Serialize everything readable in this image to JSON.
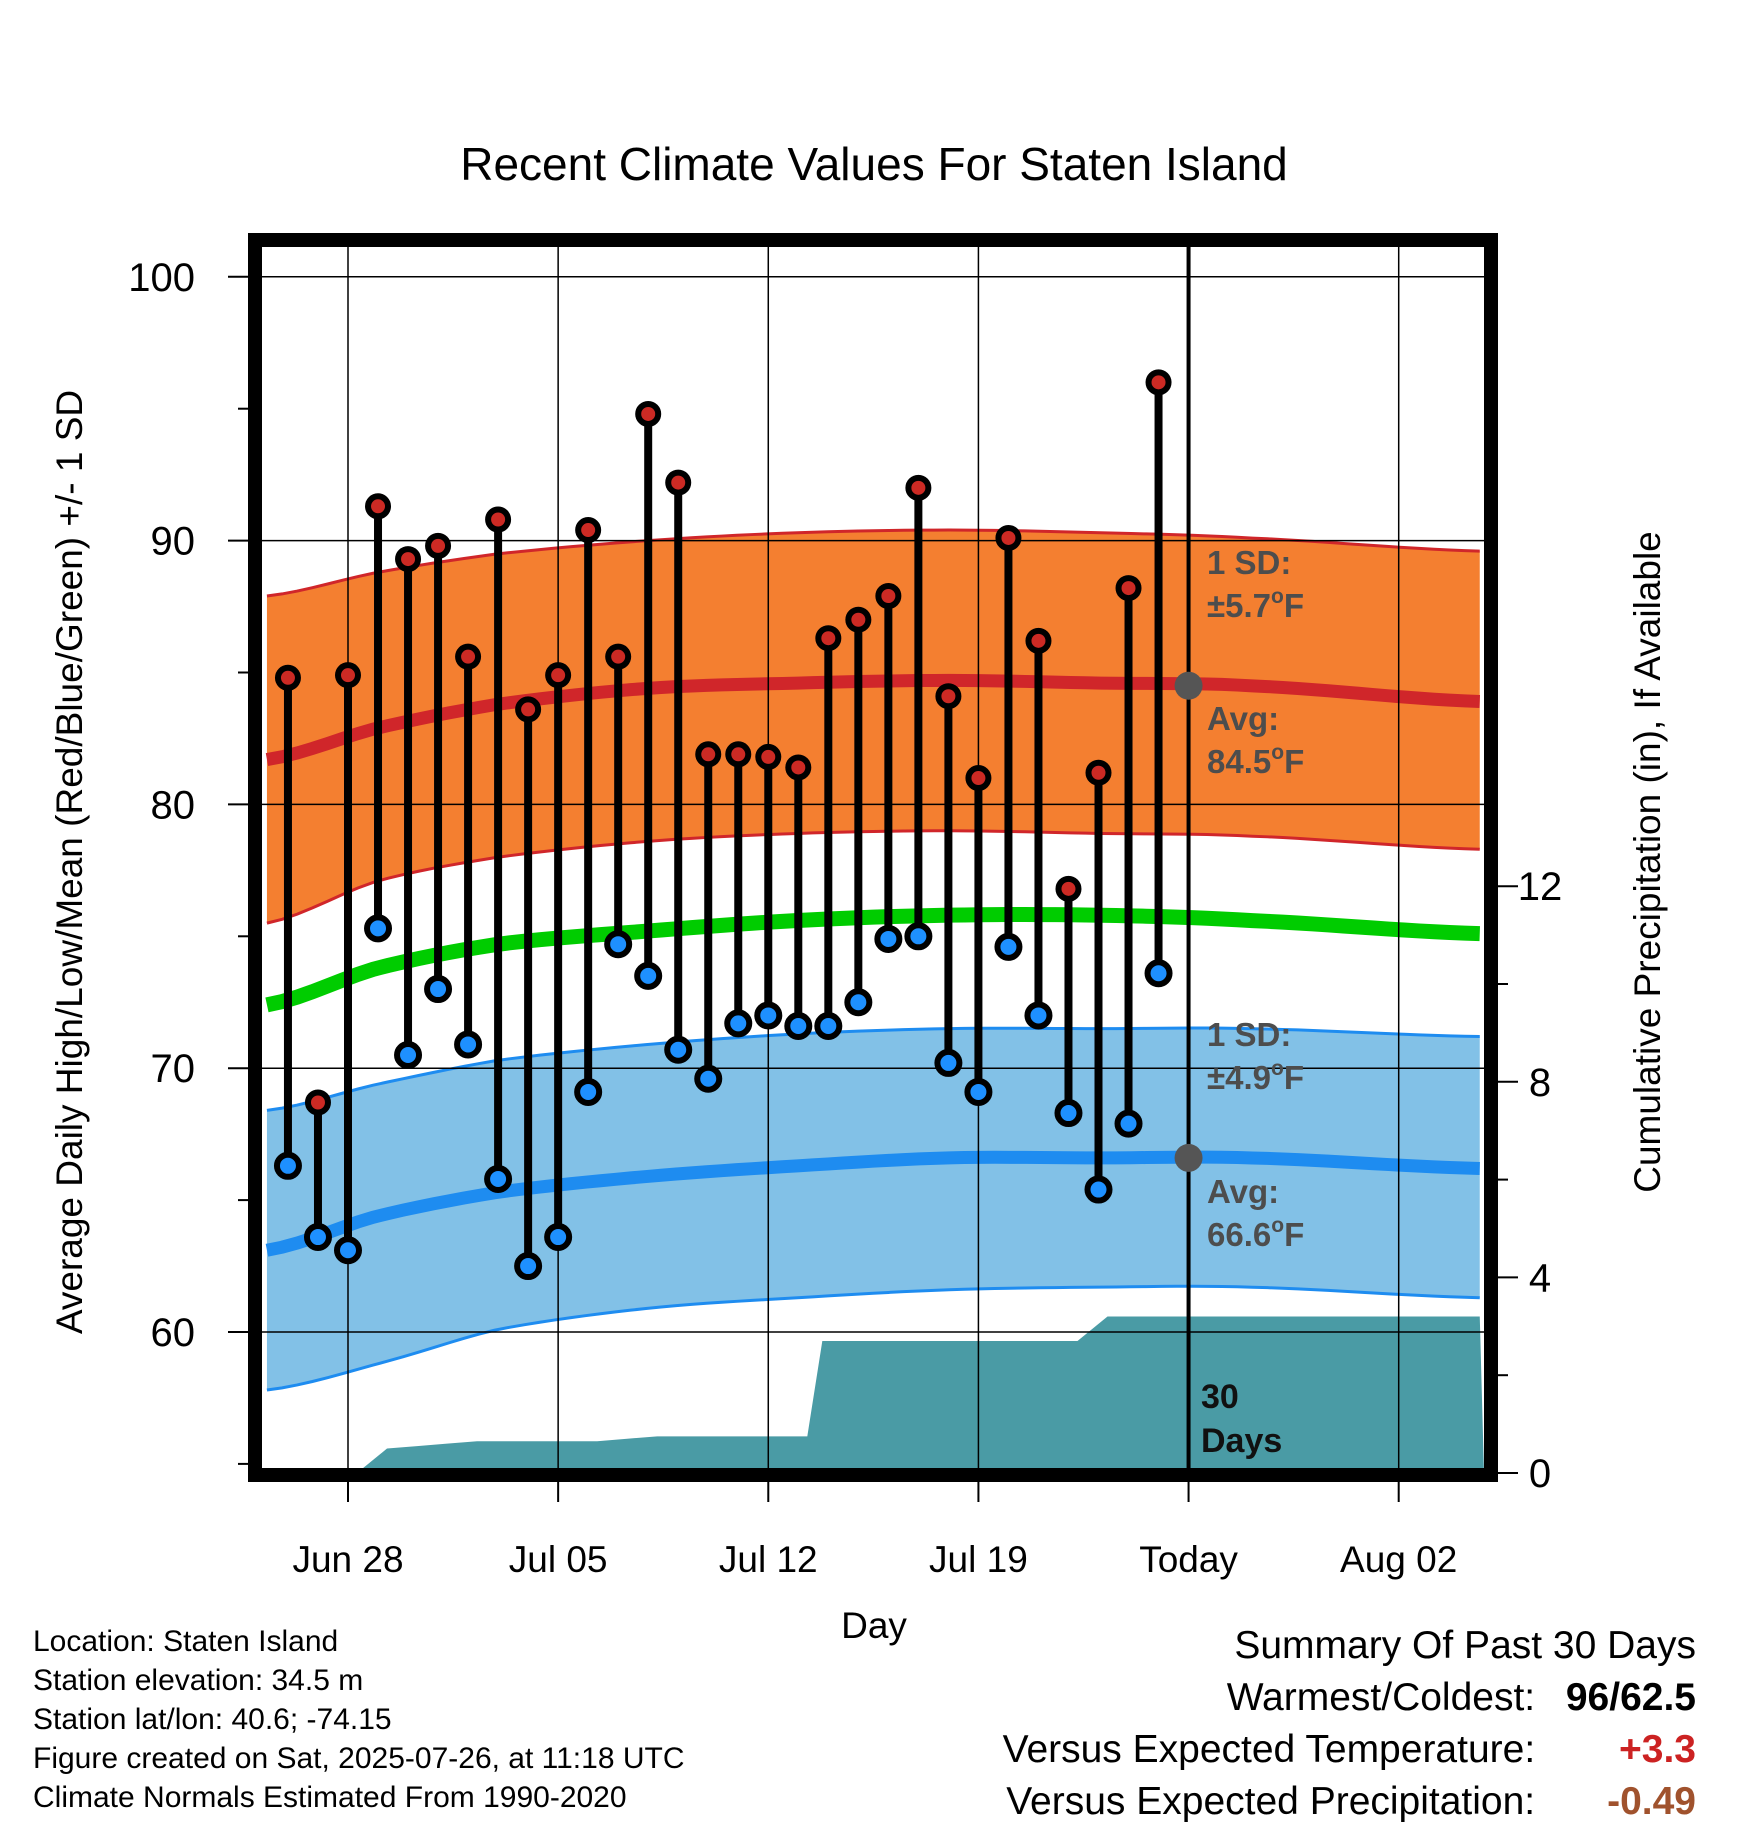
{
  "chart_data": {
    "type": "line",
    "title": "Recent Climate Values For Staten Island",
    "xlabel": "Day",
    "ylabel": "Average Daily High/Low/Mean (Red/Blue/Green) +/- 1 SD",
    "y2label": "Cumulative Precipitation (in), If Available",
    "ylim": [
      55,
      101.3
    ],
    "y2lim": [
      0,
      20
    ],
    "y_ticks": [
      "100",
      "90",
      "80",
      "70",
      "60"
    ],
    "y2_ticks": [
      "0",
      "4",
      "8",
      "12"
    ],
    "x_tick_labels": [
      {
        "day": 0,
        "label": "Jun 28"
      },
      {
        "day": 7,
        "label": "Jul 05"
      },
      {
        "day": 14,
        "label": "Jul 12"
      },
      {
        "day": 21,
        "label": "Jul 19"
      },
      {
        "day": 28,
        "label": "Today"
      },
      {
        "day": 35,
        "label": "Aug 02"
      }
    ],
    "xlim": [
      -2.7,
      37.7
    ],
    "grid": true,
    "series": [
      {
        "name": "High",
        "color": "#cc2a24",
        "days": [
          -2,
          -1,
          0,
          1,
          2,
          3,
          4,
          5,
          6,
          7,
          8,
          9,
          10,
          11,
          12,
          13,
          14,
          15,
          16,
          17,
          18,
          19,
          20,
          21,
          22,
          23,
          24,
          25,
          26,
          27
        ],
        "values": [
          84.8,
          68.7,
          84.9,
          91.3,
          89.3,
          89.8,
          85.6,
          90.8,
          83.6,
          84.9,
          90.4,
          85.6,
          94.8,
          92.2,
          81.9,
          81.9,
          81.8,
          81.4,
          86.3,
          87.0,
          87.9,
          92.0,
          84.1,
          81.0,
          90.1,
          86.2,
          76.8,
          81.2,
          88.2,
          96.0
        ]
      },
      {
        "name": "Low",
        "color": "#1e90ff",
        "days": [
          -2,
          -1,
          0,
          1,
          2,
          3,
          4,
          5,
          6,
          7,
          8,
          9,
          10,
          11,
          12,
          13,
          14,
          15,
          16,
          17,
          18,
          19,
          20,
          21,
          22,
          23,
          24,
          25,
          26,
          27
        ],
        "values": [
          66.3,
          63.6,
          63.1,
          75.3,
          70.5,
          73.0,
          70.9,
          65.8,
          62.5,
          63.6,
          69.1,
          74.7,
          73.5,
          70.7,
          69.6,
          71.7,
          72.0,
          71.6,
          71.6,
          72.5,
          74.9,
          75.0,
          70.2,
          69.1,
          74.6,
          72.0,
          68.3,
          65.4,
          67.9,
          73.6
        ]
      }
    ],
    "normals": {
      "days": [
        -2.7,
        1,
        5,
        10,
        15,
        20,
        25,
        30,
        37.7
      ],
      "high_avg": [
        81.7,
        82.9,
        83.8,
        84.4,
        84.6,
        84.7,
        84.6,
        84.5,
        83.9
      ],
      "high_sd_upper": [
        87.9,
        88.8,
        89.5,
        90.0,
        90.3,
        90.4,
        90.3,
        90.1,
        89.6
      ],
      "high_sd_lower": [
        75.5,
        77.1,
        78.0,
        78.6,
        78.9,
        79.0,
        78.9,
        78.8,
        78.3
      ],
      "mean_avg": [
        72.4,
        73.8,
        74.7,
        75.2,
        75.6,
        75.8,
        75.8,
        75.6,
        75.1
      ],
      "low_avg": [
        63.1,
        64.4,
        65.3,
        65.9,
        66.3,
        66.6,
        66.6,
        66.6,
        66.2
      ],
      "low_sd_upper": [
        68.4,
        69.4,
        70.3,
        70.9,
        71.3,
        71.5,
        71.5,
        71.5,
        71.2
      ],
      "low_sd_lower": [
        57.8,
        58.8,
        60.1,
        60.9,
        61.3,
        61.6,
        61.7,
        61.7,
        61.3
      ],
      "colors": {
        "high_band": "#f47f30",
        "high_line": "#d0262a",
        "mean_line": "#00cc00",
        "low_band": "#82c1e7",
        "low_line": "#1e8cf0",
        "precip": "#4a9ba5"
      }
    },
    "precipitation": {
      "days": [
        -2.7,
        0.3,
        1.3,
        2.3,
        3.3,
        4.3,
        5.3,
        6.3,
        7.3,
        8.3,
        9.3,
        10.3,
        11.3,
        12.3,
        13.3,
        14.3,
        15.3,
        15.8,
        24.3,
        25.3,
        26.3,
        27.3,
        28,
        37.7
      ],
      "values": [
        0,
        0,
        0.5,
        0.55,
        0.6,
        0.65,
        0.65,
        0.65,
        0.65,
        0.65,
        0.7,
        0.75,
        0.75,
        0.75,
        0.75,
        0.75,
        0.75,
        2.7,
        2.7,
        3.2,
        3.2,
        3.2,
        3.2,
        3.2
      ]
    },
    "annotations": {
      "high_sd": "1 SD:",
      "high_sd_val": "±5.7",
      "high_avg": "Avg:",
      "high_avg_val": "84.5",
      "low_sd": "1 SD:",
      "low_sd_val": "±4.9",
      "low_avg": "Avg:",
      "low_avg_val": "66.6",
      "deg_sup": "o",
      "deg_unit": "F",
      "days_label_1": "30",
      "days_label_2": "Days",
      "today_high": 84.5,
      "today_low": 66.6
    }
  },
  "footer": [
    "Location: Staten Island",
    "Station elevation: 34.5 m",
    "Station lat/lon: 40.6; -74.15",
    "Figure created on Sat, 2025-07-26, at 11:18 UTC",
    "Climate Normals Estimated From 1990-2020"
  ],
  "summary": {
    "title": "Summary Of Past 30 Days",
    "warm_cold_label": "Warmest/Coldest:",
    "warmest": "96",
    "coldest": "62.5",
    "slash": "/",
    "temp_label": "Versus Expected Temperature:",
    "temp_value": "+3.3",
    "temp_color": "#cc2222",
    "precip_label": "Versus Expected Precipitation:",
    "precip_value": "-0.49",
    "precip_color": "#a0522d"
  }
}
